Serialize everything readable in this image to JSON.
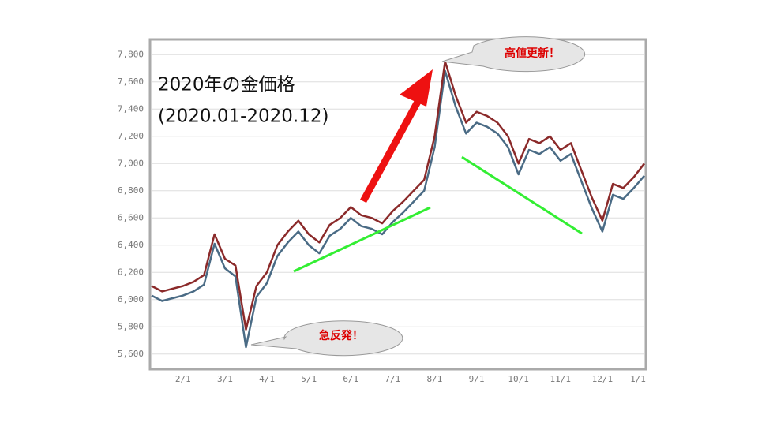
{
  "chart_data": {
    "type": "line",
    "title": "2020年の金価格",
    "subtitle": "(2020.01-2020.12)",
    "annotations": [
      "高値更新！",
      "急反発！"
    ],
    "categories": [
      null,
      null,
      null,
      "2/1",
      null,
      null,
      null,
      "3/1",
      null,
      null,
      null,
      "4/1",
      null,
      null,
      null,
      "5/1",
      null,
      null,
      null,
      "6/1",
      null,
      null,
      null,
      "7/1",
      null,
      null,
      null,
      "8/1",
      null,
      null,
      null,
      "9/1",
      null,
      null,
      null,
      "10/1",
      null,
      null,
      null,
      "11/1",
      null,
      null,
      null,
      "12/1",
      null,
      null,
      null,
      "1/1"
    ],
    "series": [
      {
        "color": "#8b2a2a",
        "values": [
          6100,
          6060,
          6080,
          6100,
          6130,
          6180,
          6480,
          6300,
          6250,
          5780,
          6100,
          6200,
          6400,
          6500,
          6580,
          6480,
          6420,
          6550,
          6600,
          6680,
          6620,
          6600,
          6560,
          6650,
          6720,
          6800,
          6880,
          7200,
          7750,
          7500,
          7300,
          7380,
          7350,
          7300,
          7200,
          7000,
          7180,
          7150,
          7200,
          7100,
          7150,
          6950,
          6750,
          6580,
          6850,
          6820,
          6900,
          7000
        ]
      },
      {
        "color": "#4a6b85",
        "values": [
          6030,
          5990,
          6010,
          6030,
          6060,
          6110,
          6410,
          6230,
          6170,
          5650,
          6020,
          6120,
          6320,
          6420,
          6500,
          6400,
          6340,
          6470,
          6520,
          6600,
          6540,
          6520,
          6480,
          6570,
          6640,
          6720,
          6800,
          7120,
          7680,
          7420,
          7220,
          7300,
          7270,
          7220,
          7120,
          6920,
          7100,
          7070,
          7120,
          7020,
          7070,
          6870,
          6670,
          6500,
          6770,
          6740,
          6820,
          6910
        ]
      }
    ],
    "ylim": [
      5500,
      7900
    ],
    "yticks": [
      {
        "value": 5600,
        "label": "5,600"
      },
      {
        "value": 5800,
        "label": "5,800"
      },
      {
        "value": 6000,
        "label": "6,000"
      },
      {
        "value": 6200,
        "label": "6,200"
      },
      {
        "value": 6400,
        "label": "6,400"
      },
      {
        "value": 6600,
        "label": "6,600"
      },
      {
        "value": 6800,
        "label": "6,800"
      },
      {
        "value": 7000,
        "label": "7,000"
      },
      {
        "value": 7200,
        "label": "7,200"
      },
      {
        "value": 7400,
        "label": "7,400"
      },
      {
        "value": 7600,
        "label": "7,600"
      },
      {
        "value": 7800,
        "label": "7,800"
      }
    ],
    "grid": true
  }
}
